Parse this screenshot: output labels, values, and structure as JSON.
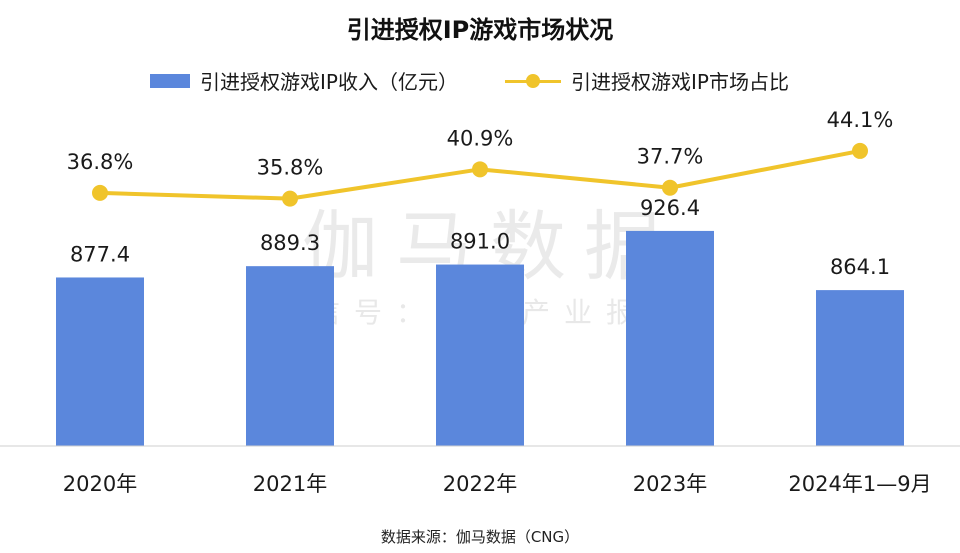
{
  "title": "引进授权IP游戏市场状况",
  "legend": {
    "bar_label": "引进授权游戏IP收入（亿元）",
    "line_label": "引进授权游戏IP市场占比"
  },
  "source": "数据来源：伽马数据（CNG）",
  "watermark": {
    "line1": "伽马数据",
    "line2": "微信号：游戏产业报告"
  },
  "colors": {
    "bar": "#5b87dc",
    "line": "#f0c42b",
    "text": "#1a1a1a"
  },
  "chart_data": {
    "type": "bar",
    "categories": [
      "2020年",
      "2021年",
      "2022年",
      "2023年",
      "2024年1—9月"
    ],
    "series": [
      {
        "name": "引进授权游戏IP收入（亿元）",
        "type": "bar",
        "values": [
          877.4,
          889.3,
          891.0,
          926.4,
          864.1
        ],
        "labels": [
          "877.4",
          "889.3",
          "891.0",
          "926.4",
          "864.1"
        ]
      },
      {
        "name": "引进授权游戏IP市场占比",
        "type": "line",
        "values": [
          36.8,
          35.8,
          40.9,
          37.7,
          44.1
        ],
        "labels": [
          "36.8%",
          "35.8%",
          "40.9%",
          "37.7%",
          "44.1%"
        ]
      }
    ],
    "xlabel": "",
    "ylabel": "",
    "bar_ylim": [
      0,
      1000
    ],
    "line_ylim": [
      0,
      100
    ],
    "grid": false,
    "legend_position": "top"
  }
}
